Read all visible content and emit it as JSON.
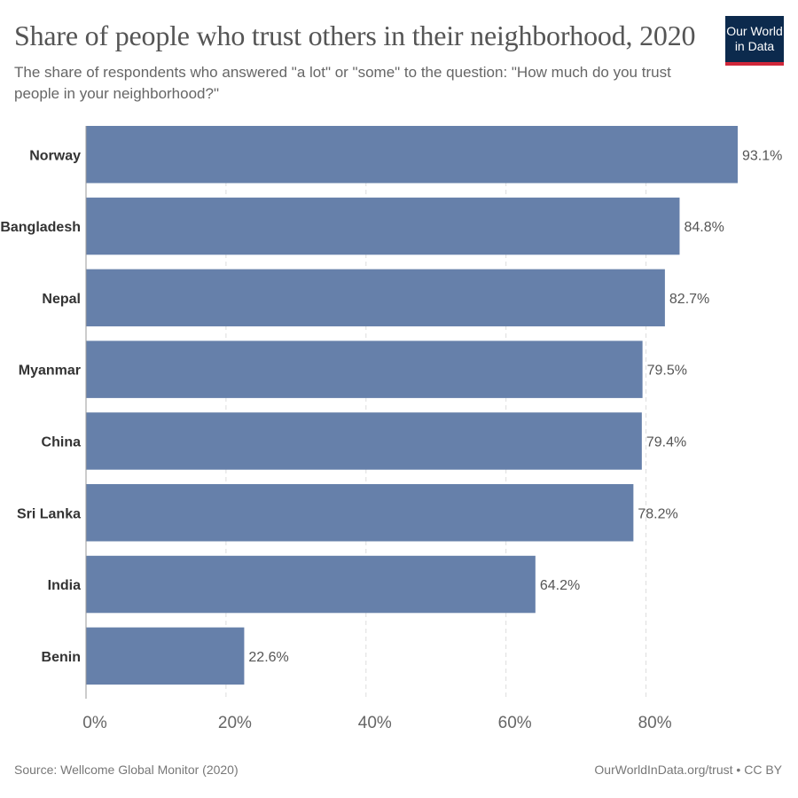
{
  "header": {
    "title": "Share of people who trust others in their neighborhood, 2020",
    "subtitle": "The share of respondents who answered \"a lot\" or \"some\" to the question: \"How much do you trust people in your neighborhood?\""
  },
  "logo": {
    "line1": "Our World",
    "line2": "in Data"
  },
  "footer": {
    "source": "Source: Wellcome Global Monitor (2020)",
    "credit": "OurWorldInData.org/trust • CC BY"
  },
  "colors": {
    "bar": "#6680aa",
    "grid": "#dddddd",
    "axis": "#999999",
    "label": "#333333",
    "value": "#555555"
  },
  "chart_data": {
    "type": "bar",
    "orientation": "horizontal",
    "title": "Share of people who trust others in their neighborhood, 2020",
    "categories": [
      "Norway",
      "Bangladesh",
      "Nepal",
      "Myanmar",
      "China",
      "Sri Lanka",
      "India",
      "Benin"
    ],
    "values": [
      93.1,
      84.8,
      82.7,
      79.5,
      79.4,
      78.2,
      64.2,
      22.6
    ],
    "value_labels": [
      "93.1%",
      "84.8%",
      "82.7%",
      "79.5%",
      "79.4%",
      "78.2%",
      "64.2%",
      "22.6%"
    ],
    "xticks": [
      0,
      20,
      40,
      60,
      80
    ],
    "xtick_labels": [
      "0%",
      "20%",
      "40%",
      "60%",
      "80%"
    ],
    "xlim": [
      0,
      93.1
    ],
    "grid": true,
    "legend": "none"
  }
}
